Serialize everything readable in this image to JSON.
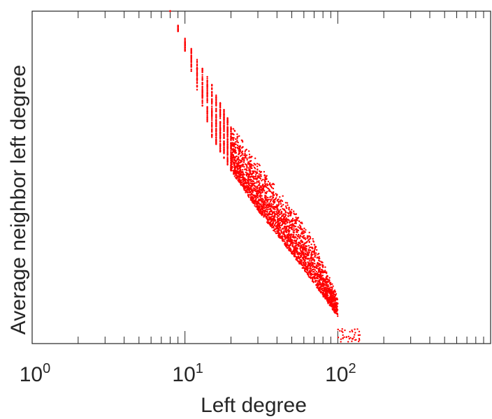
{
  "chart_data": {
    "type": "scatter",
    "title": "",
    "xlabel": "Left degree",
    "ylabel": "Average neighbor left degree",
    "xscale": "log",
    "xlim": [
      1,
      1000
    ],
    "ylim": [
      0,
      1
    ],
    "grid": false,
    "legend": "none",
    "color": "#ff0000",
    "x_ticks": [
      {
        "base": "10",
        "exp": "0",
        "value": 1
      },
      {
        "base": "10",
        "exp": "1",
        "value": 10
      },
      {
        "base": "10",
        "exp": "2",
        "value": 100
      }
    ],
    "y_tick_labels": [],
    "trend": {
      "x": [
        8,
        10,
        15,
        20,
        30,
        50,
        70,
        100,
        140
      ],
      "y_upper": [
        1.0,
        0.92,
        0.78,
        0.66,
        0.55,
        0.41,
        0.32,
        0.14,
        0.0
      ],
      "y_lower": [
        1.0,
        0.88,
        0.62,
        0.52,
        0.4,
        0.27,
        0.18,
        0.08,
        0.0
      ]
    }
  }
}
